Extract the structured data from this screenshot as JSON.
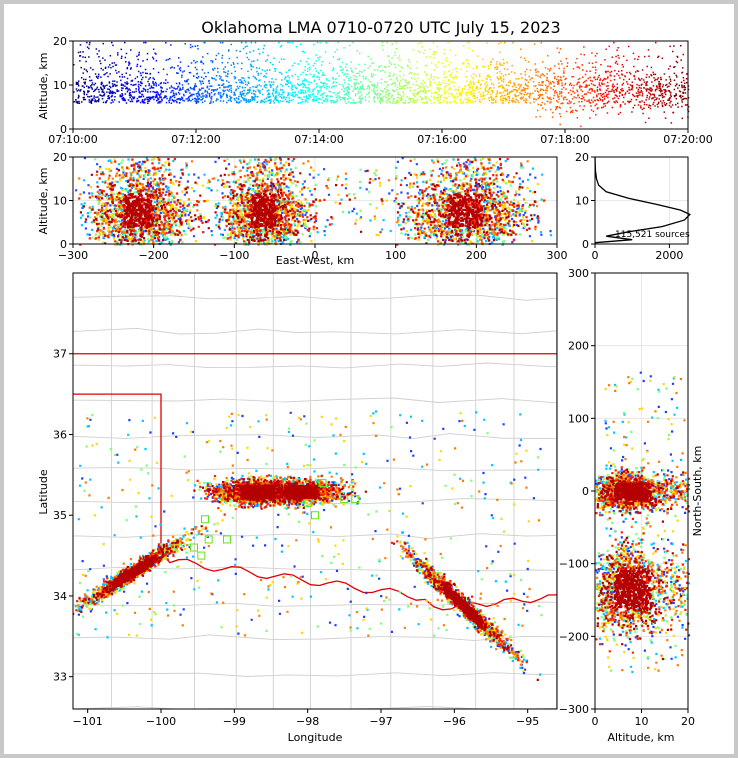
{
  "chart_data": [
    {
      "id": "time-height",
      "type": "scatter",
      "title": "Oklahoma LMA 0710-0720 UTC July 15, 2023",
      "xlabel": "",
      "ylabel": "Altitude, km",
      "xticks": [
        "07:10:00",
        "07:12:00",
        "07:14:00",
        "07:16:00",
        "07:18:00",
        "07:20:00"
      ],
      "xlim_minutes": [
        0,
        10
      ],
      "ylim": [
        0,
        20
      ],
      "yticks": [
        0,
        10,
        20
      ],
      "color_encoding": "jet colormap by time"
    },
    {
      "id": "ew-altitude",
      "type": "scatter",
      "xlabel": "East-West, km",
      "ylabel": "Altitude, km",
      "xlim": [
        -300,
        300
      ],
      "xticks": [
        -300,
        -200,
        -100,
        0,
        100,
        200,
        300
      ],
      "ylim": [
        0,
        20
      ],
      "yticks": [
        0,
        10,
        20
      ],
      "clusters": [
        {
          "x_center": -220,
          "x_spread": 30
        },
        {
          "x_center": -65,
          "x_spread": 25
        },
        {
          "x_center": 185,
          "x_spread": 35
        }
      ]
    },
    {
      "id": "altitude-histogram",
      "type": "line",
      "annotation": "115,521 sources",
      "xlim": [
        0,
        2500
      ],
      "xticks": [
        0,
        2000
      ],
      "ylim": [
        0,
        20
      ],
      "yticks": [
        0,
        10,
        20
      ],
      "profile": [
        [
          0,
          0.3
        ],
        [
          1000,
          1.0
        ],
        [
          300,
          1.8
        ],
        [
          900,
          2.8
        ],
        [
          1800,
          4
        ],
        [
          2400,
          5.5
        ],
        [
          2550,
          6.8
        ],
        [
          2300,
          7.8
        ],
        [
          1700,
          9
        ],
        [
          900,
          10.5
        ],
        [
          300,
          12
        ],
        [
          100,
          13.5
        ],
        [
          40,
          15
        ],
        [
          10,
          17
        ],
        [
          0,
          20
        ]
      ]
    },
    {
      "id": "plan-view-map",
      "type": "scatter",
      "xlabel": "Longitude",
      "ylabel": "Latitude",
      "xlim": [
        -101.2,
        -94.6
      ],
      "ylim": [
        32.6,
        38
      ],
      "xticks": [
        -101,
        -100,
        -99,
        -98,
        -97,
        -96,
        -95
      ],
      "yticks": [
        33,
        34,
        35,
        36,
        37
      ],
      "clusters": [
        {
          "lon": -100.4,
          "lat": 34.3
        },
        {
          "lon": -98.7,
          "lat": 35.3
        },
        {
          "lon": -98.1,
          "lat": 35.3
        },
        {
          "lon": -95.9,
          "lat": 33.9
        }
      ],
      "stations": [
        [
          -99.4,
          34.95
        ],
        [
          -99.35,
          34.7
        ],
        [
          -99.1,
          34.7
        ],
        [
          -99.55,
          34.6
        ],
        [
          -99.45,
          34.5
        ],
        [
          -97.5,
          35.2
        ],
        [
          -97.35,
          35.2
        ],
        [
          -97.8,
          35.4
        ],
        [
          -97.9,
          35.0
        ],
        [
          -98.0,
          35.15
        ]
      ]
    },
    {
      "id": "ns-altitude",
      "type": "scatter",
      "xlabel": "Altitude, km",
      "ylabel": "North-South, km",
      "xlim": [
        0,
        20
      ],
      "xticks": [
        0,
        10,
        20
      ],
      "ylim": [
        -300,
        300
      ],
      "yticks": [
        -300,
        -200,
        -100,
        0,
        100,
        200,
        300
      ]
    }
  ]
}
